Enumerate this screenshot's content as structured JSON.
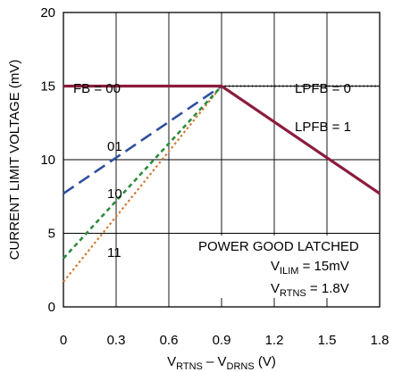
{
  "chart_data": {
    "type": "line",
    "xlabel": {
      "main": "V",
      "sub1": "RTNS",
      "mid": " – V",
      "sub2": "DRNS",
      "unit": " (V)"
    },
    "ylabel": "CURRENT LIMIT VOLTAGE (mV)",
    "xlim": [
      0,
      1.8
    ],
    "ylim": [
      0,
      20
    ],
    "xticks": [
      0,
      0.3,
      0.6,
      0.9,
      1.2,
      1.5,
      1.8
    ],
    "xtick_labels": [
      "0",
      "0.3",
      "0.6",
      "0.9",
      "1.2",
      "1.5",
      "1.8"
    ],
    "yticks": [
      0,
      5,
      10,
      15,
      20
    ],
    "ytick_labels": [
      "0",
      "5",
      "10",
      "15",
      "20"
    ],
    "grid": true,
    "series": [
      {
        "name": "00",
        "style": "solid",
        "color": "#8c1c3c",
        "x": [
          0,
          0.9,
          1.8
        ],
        "y": [
          15,
          15,
          7.7
        ]
      },
      {
        "name": "LPFB = 0",
        "style": "dotted",
        "color": "#222222",
        "x": [
          0.9,
          1.8
        ],
        "y": [
          15,
          15
        ]
      },
      {
        "name": "01",
        "style": "dash-long",
        "color": "#2e4f9e",
        "x": [
          0,
          0.9
        ],
        "y": [
          7.7,
          15
        ]
      },
      {
        "name": "10",
        "style": "dash-short",
        "color": "#2e8b3e",
        "x": [
          0,
          0.9
        ],
        "y": [
          3.3,
          15
        ]
      },
      {
        "name": "11",
        "style": "dot",
        "color": "#d07830",
        "x": [
          0,
          0.9
        ],
        "y": [
          1.7,
          15
        ]
      }
    ],
    "annotations": {
      "fb": "FB = 00",
      "lpfb0": "LPFB = 0",
      "lpfb1": "LPFB = 1",
      "l01": "01",
      "l10": "10",
      "l11": "11",
      "pgl": "POWER GOOD LATCHED",
      "vilim": {
        "main": "V",
        "sub": "ILIM",
        "rest": " = 15mV"
      },
      "vrtns": {
        "main": "V",
        "sub": "RTNS",
        "rest": " = 1.8V"
      }
    }
  }
}
